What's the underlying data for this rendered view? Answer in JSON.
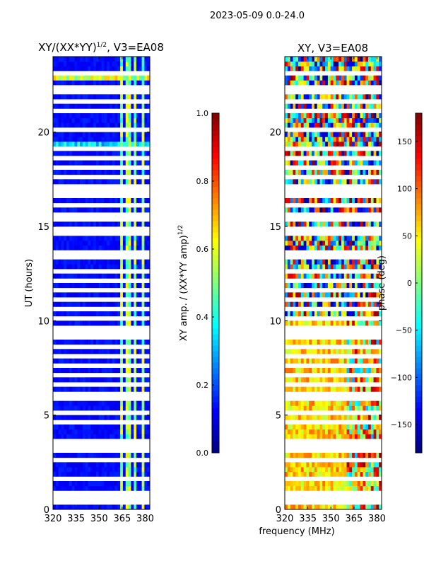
{
  "figure": {
    "suptitle": "2023-05-09 0.0-24.0",
    "xlabel": "frequency (MHz)"
  },
  "chart_data": [
    {
      "type": "heatmap",
      "title_main": "XY/(XX*YY)",
      "title_sup": "1/2",
      "title_rest": ", V3=EA08",
      "xlabel": "",
      "ylabel": "UT (hours)",
      "xlim": [
        320,
        383
      ],
      "ylim": [
        0,
        24
      ],
      "xticks": [
        "320",
        "335",
        "350",
        "365",
        "380"
      ],
      "xtick_values": [
        320,
        335,
        350,
        365,
        380
      ],
      "yticks": [
        "0",
        "5",
        "10",
        "15",
        "20"
      ],
      "ytick_values": [
        0,
        5,
        10,
        15,
        20
      ],
      "colorbar": {
        "label_main": "XY amp. / (XX*YY amp)",
        "label_sup": "1/2",
        "range": [
          0.0,
          1.0
        ],
        "ticks": [
          "0.0",
          "0.2",
          "0.4",
          "0.6",
          "0.8",
          "1.0"
        ],
        "tick_values": [
          0.0,
          0.2,
          0.4,
          0.6,
          0.8,
          1.0
        ],
        "colormap": "jet"
      },
      "flagged_ut_hours": [
        0.3,
        0.6,
        0.9,
        1.5,
        1.6,
        2.5,
        3.0,
        3.4,
        3.5,
        4.5,
        5.0,
        5.9,
        6.0,
        6.1,
        6.5,
        6.6,
        7.0,
        7.5,
        8.0,
        8.6,
        9.0,
        9.4,
        9.6,
        10.0,
        10.5,
        11.0,
        11.5,
        12.0,
        12.6,
        13.3,
        13.5,
        14.6,
        14.8,
        15.4,
        15.7,
        16.2,
        16.6,
        16.8,
        17.0,
        17.5,
        18.0,
        18.5,
        19.0,
        19.1,
        20.2,
        21.0,
        21.5,
        22.0,
        22.4,
        23.0,
        23.2
      ],
      "bright_channel_bands_mhz": [
        [
          363,
          366
        ],
        [
          368,
          371
        ],
        [
          373,
          375
        ],
        [
          378,
          380
        ]
      ],
      "background_level": 0.1,
      "band_level": 0.4
    },
    {
      "type": "heatmap",
      "title": "XY, V3=EA08",
      "xlabel": "",
      "ylabel": "",
      "xlim": [
        320,
        383
      ],
      "ylim": [
        0,
        24
      ],
      "xticks": [
        "320",
        "335",
        "350",
        "365",
        "380"
      ],
      "xtick_values": [
        320,
        335,
        350,
        365,
        380
      ],
      "yticks": [
        "0",
        "5",
        "10",
        "15",
        "20"
      ],
      "ytick_values": [
        0,
        5,
        10,
        15,
        20
      ],
      "colorbar": {
        "label": "phase (deg)",
        "range": [
          -180,
          180
        ],
        "ticks": [
          "−150",
          "−100",
          "−50",
          "0",
          "50",
          "100",
          "150"
        ],
        "tick_values": [
          -150,
          -100,
          -50,
          0,
          50,
          100,
          150
        ],
        "colormap": "jet"
      },
      "flagged_ut_hours": [
        0.3,
        0.6,
        0.9,
        1.5,
        1.6,
        2.5,
        3.0,
        3.4,
        3.5,
        4.5,
        5.0,
        5.9,
        6.0,
        6.1,
        6.5,
        6.6,
        7.0,
        7.5,
        8.0,
        8.6,
        9.0,
        9.4,
        9.6,
        10.0,
        10.5,
        11.0,
        11.5,
        12.0,
        12.6,
        13.3,
        13.5,
        14.6,
        14.8,
        15.4,
        15.7,
        16.2,
        16.6,
        16.8,
        17.0,
        17.5,
        18.0,
        18.5,
        19.0,
        19.1,
        20.2,
        21.0,
        21.5,
        22.0,
        22.4,
        23.0,
        23.2
      ],
      "phase_low_ut_deg": 60,
      "phase_high_ut": "random"
    }
  ]
}
